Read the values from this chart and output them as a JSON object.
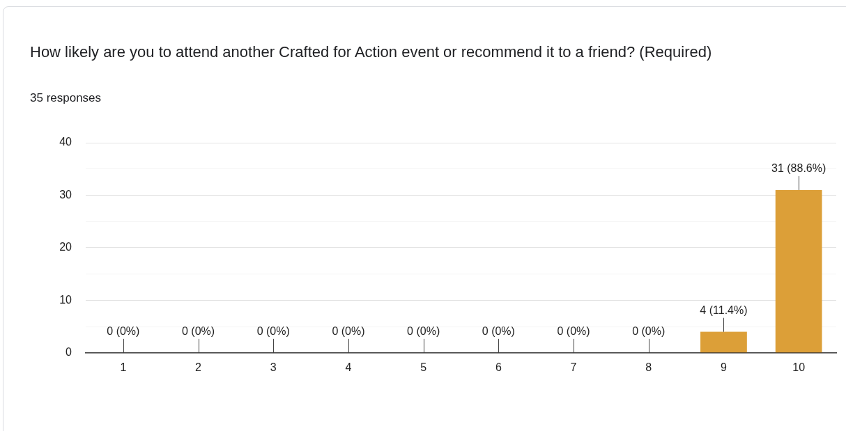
{
  "chart_data": {
    "type": "bar",
    "title": "How likely are you to attend another Crafted for Action event or recommend it to a friend? (Required)",
    "subtitle": "35 responses",
    "categories": [
      "1",
      "2",
      "3",
      "4",
      "5",
      "6",
      "7",
      "8",
      "9",
      "10"
    ],
    "values": [
      0,
      0,
      0,
      0,
      0,
      0,
      0,
      0,
      4,
      31
    ],
    "value_labels": [
      "0 (0%)",
      "0 (0%)",
      "0 (0%)",
      "0 (0%)",
      "0 (0%)",
      "0 (0%)",
      "0 (0%)",
      "0 (0%)",
      "4 (11.4%)",
      "31 (88.6%)"
    ],
    "color": "#dc9f38",
    "ylim": [
      0,
      40
    ],
    "yticks": [
      0,
      {
        "value": 5,
        "label": null
      },
      10,
      {
        "value": 15,
        "label": null
      },
      20,
      {
        "value": 25,
        "label": null
      },
      30,
      {
        "value": 35,
        "label": null
      },
      40
    ],
    "grid": "y",
    "legend": false
  }
}
